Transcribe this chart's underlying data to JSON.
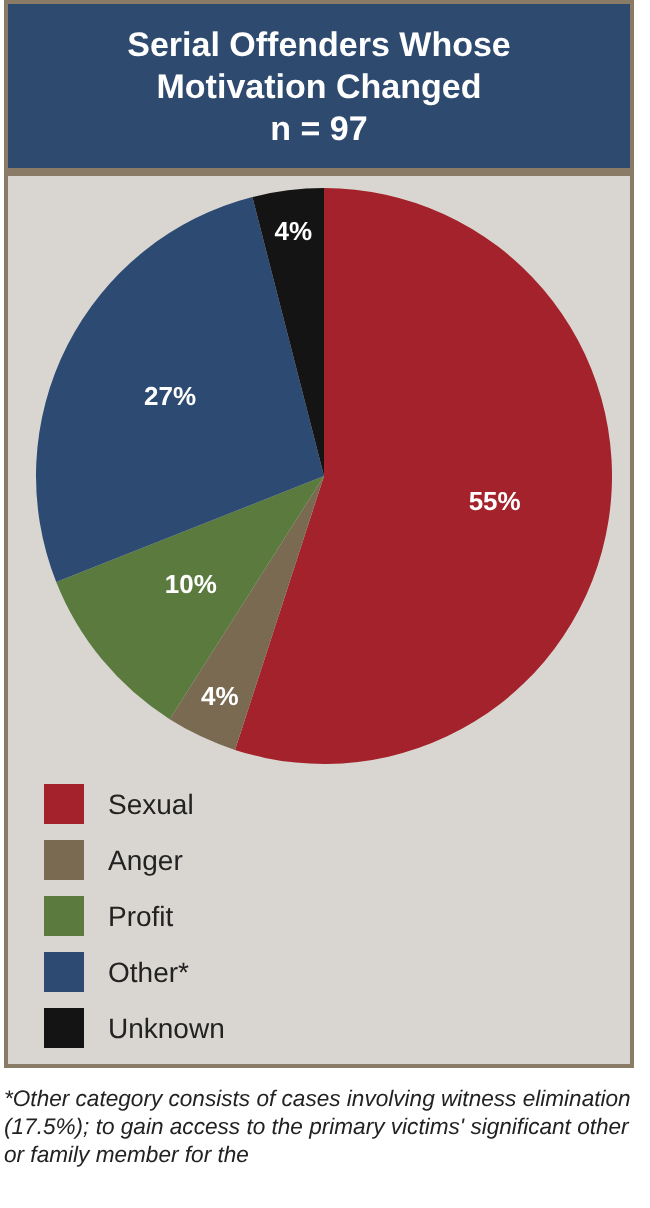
{
  "chart_data": {
    "type": "pie",
    "title": "Serial Offenders Whose Motivation Changed",
    "subtitle": "n = 97",
    "categories": [
      "Sexual",
      "Anger",
      "Profit",
      "Other*",
      "Unknown"
    ],
    "values": [
      55,
      4,
      10,
      27,
      4
    ],
    "colors": [
      "#a3222b",
      "#7b6a52",
      "#5a7a3e",
      "#2d4a73",
      "#141414"
    ],
    "value_labels": [
      "55%",
      "4%",
      "10%",
      "27%",
      "4%"
    ],
    "legend": "bottom",
    "annotations": [
      "*Other category consists of cases involving witness elimination (17.5%); to gain access to the primary victims' significant other or family member for the"
    ]
  }
}
